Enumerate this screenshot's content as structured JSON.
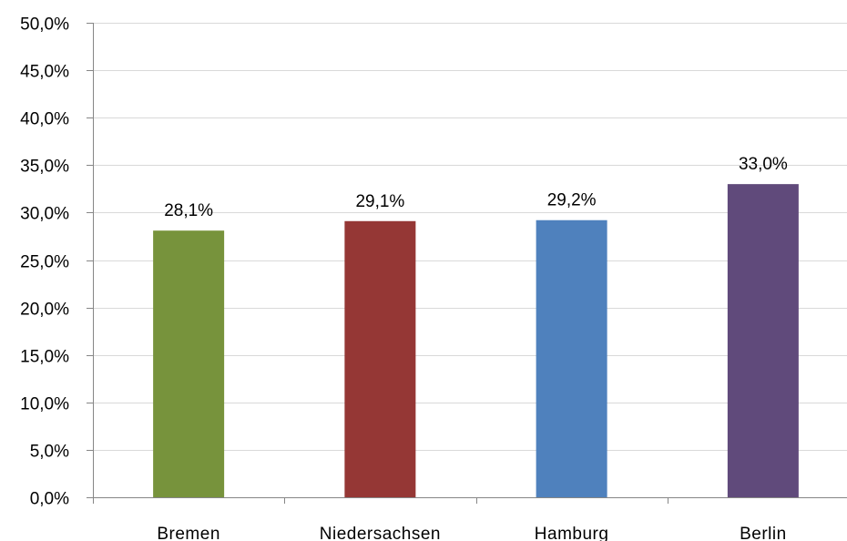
{
  "chart_data": {
    "type": "bar",
    "categories": [
      "Bremen",
      "Niedersachsen",
      "Hamburg",
      "Berlin"
    ],
    "values": [
      28.1,
      29.1,
      29.2,
      33.0
    ],
    "data_labels": [
      "28,1%",
      "29,1%",
      "29,2%",
      "33,0%"
    ],
    "colors": [
      "#77933c",
      "#953735",
      "#4f81bd",
      "#604a7b"
    ],
    "ylim": [
      0,
      50
    ],
    "yticks": [
      0,
      5,
      10,
      15,
      20,
      25,
      30,
      35,
      40,
      45,
      50
    ],
    "ytick_labels": [
      "0,0%",
      "5,0%",
      "10,0%",
      "15,0%",
      "20,0%",
      "25,0%",
      "30,0%",
      "35,0%",
      "40,0%",
      "45,0%",
      "50,0%"
    ],
    "grid": true,
    "gridline_color": "#d9d9d9",
    "axis_color": "#868686"
  }
}
